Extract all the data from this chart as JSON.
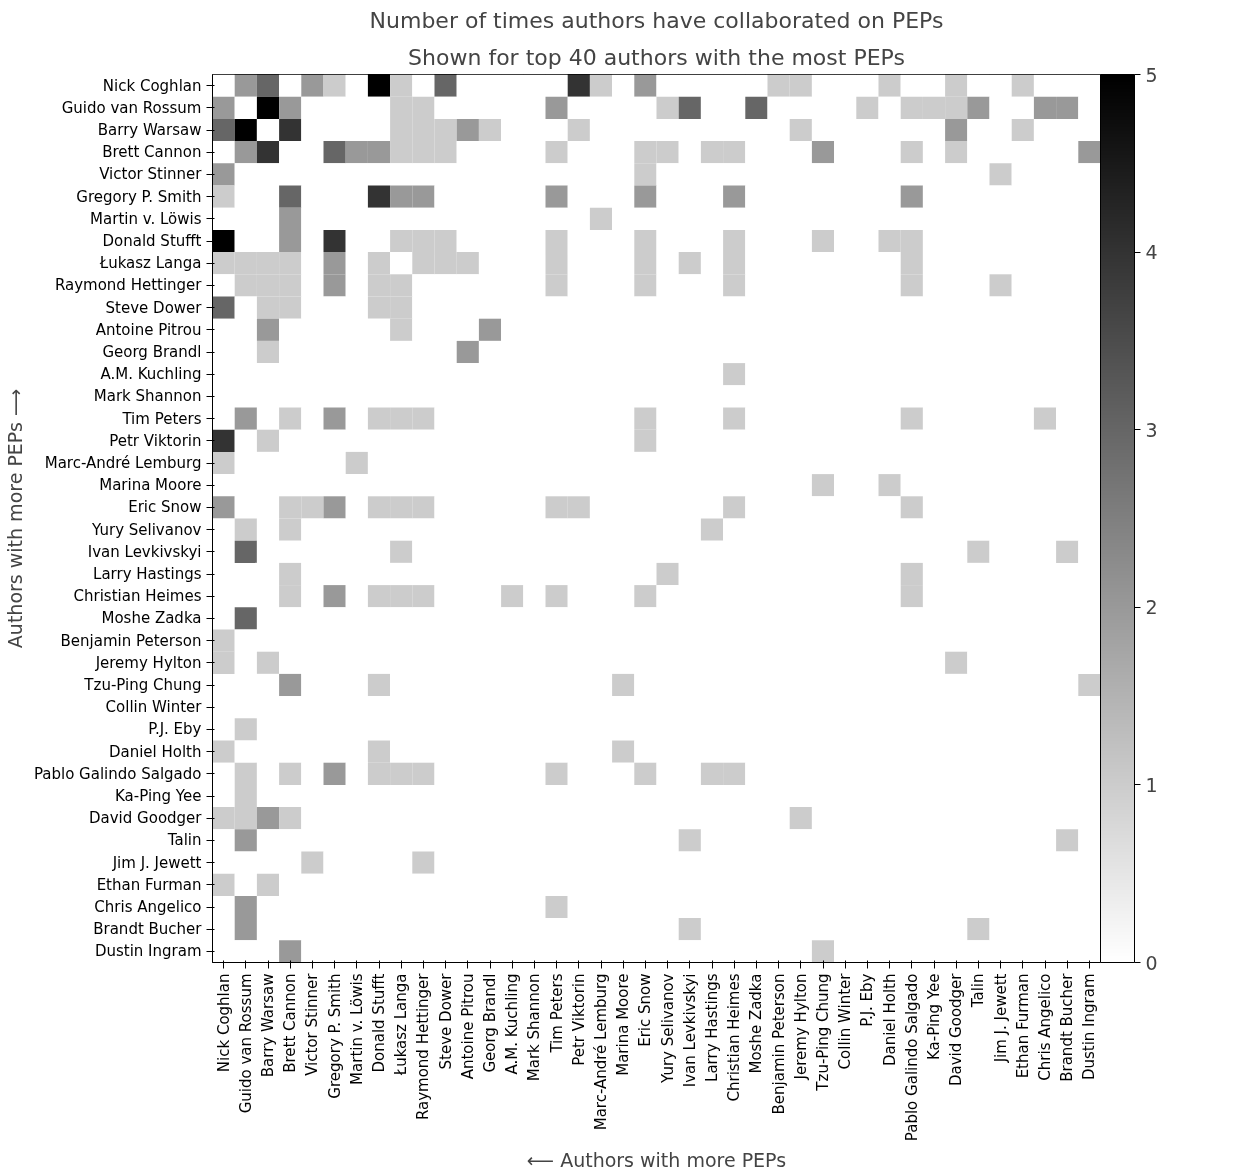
{
  "chart_data": {
    "type": "heatmap",
    "title": "Number of times authors have collaborated on PEPs",
    "subtitle": "Shown for top 40 authors with the most PEPs",
    "xlabel": "⟵ Authors with more PEPs",
    "ylabel": "Authors with more PEPs ⟶",
    "categories": [
      "Nick Coghlan",
      "Guido van Rossum",
      "Barry Warsaw",
      "Brett Cannon",
      "Victor Stinner",
      "Gregory P. Smith",
      "Martin v. Löwis",
      "Donald Stufft",
      "Łukasz Langa",
      "Raymond Hettinger",
      "Steve Dower",
      "Antoine Pitrou",
      "Georg Brandl",
      "A.M. Kuchling",
      "Mark Shannon",
      "Tim Peters",
      "Petr Viktorin",
      "Marc-André Lemburg",
      "Marina Moore",
      "Eric Snow",
      "Yury Selivanov",
      "Ivan Levkivskyi",
      "Larry Hastings",
      "Christian Heimes",
      "Moshe Zadka",
      "Benjamin Peterson",
      "Jeremy Hylton",
      "Tzu-Ping Chung",
      "Collin Winter",
      "P.J. Eby",
      "Daniel Holth",
      "Pablo Galindo Salgado",
      "Ka-Ping Yee",
      "David Goodger",
      "Talin",
      "Jim J. Jewett",
      "Ethan Furman",
      "Chris Angelico",
      "Brandt Bucher",
      "Dustin Ingram"
    ],
    "y_categories": [
      "Nick Coghlan",
      "Guido van Rossum",
      "Barry Warsaw",
      "Brett Cannon",
      "Victor Stinner",
      "Gregory P. Smith",
      "Martin v. Löwis",
      "Donald Stufft",
      "Łukasz Langa",
      "Raymond Hettinger",
      "Steve Dower",
      "Antoine Pitrou",
      "Georg Brandl",
      "A.M. Kuchling",
      "Mark Shannon",
      "Tim Peters",
      "Petr Viktorin",
      "Marc-André Lemburg",
      "Marina Moore",
      "Eric Snow",
      "Yury Selivanov",
      "Ivan Levkivskyi",
      "Larry Hastings",
      "Christian Heimes",
      "Moshe Zadka",
      "Benjamin Peterson",
      "Jeremy Hylton",
      "Tzu-Ping Chung",
      "Collin Winter",
      "P.J. Eby",
      "Daniel Holth",
      "Pablo Galindo Salgado",
      "Ka-Ping Yee",
      "David Goodger",
      "Talin",
      "Jim J. Jewett",
      "Ethan Furman",
      "Chris Angelico",
      "Brandt Bucher",
      "Dustin Ingram"
    ],
    "cells": [
      [
        0,
        2,
        3,
        0,
        2,
        1,
        0,
        5,
        1,
        0,
        3,
        0,
        0,
        0,
        0,
        0,
        4,
        1,
        0,
        2,
        0,
        0,
        0,
        0,
        0,
        1,
        1,
        0,
        0,
        0,
        1,
        0,
        0,
        1,
        0,
        0,
        1,
        0,
        0,
        0
      ],
      [
        2,
        0,
        5,
        2,
        0,
        0,
        0,
        0,
        1,
        1,
        0,
        0,
        0,
        0,
        0,
        2,
        0,
        0,
        0,
        0,
        1,
        3,
        0,
        0,
        3,
        0,
        0,
        0,
        0,
        1,
        0,
        1,
        1,
        1,
        2,
        0,
        0,
        2,
        2,
        0
      ],
      [
        3,
        5,
        0,
        4,
        0,
        0,
        0,
        0,
        1,
        1,
        1,
        2,
        1,
        0,
        0,
        0,
        1,
        0,
        0,
        0,
        0,
        0,
        0,
        0,
        0,
        0,
        1,
        0,
        0,
        0,
        0,
        0,
        0,
        2,
        0,
        0,
        1,
        0,
        0,
        0
      ],
      [
        0,
        2,
        4,
        0,
        0,
        3,
        2,
        2,
        1,
        1,
        1,
        0,
        0,
        0,
        0,
        1,
        0,
        0,
        0,
        1,
        1,
        0,
        1,
        1,
        0,
        0,
        0,
        2,
        0,
        0,
        0,
        1,
        0,
        1,
        0,
        0,
        0,
        0,
        0,
        2
      ],
      [
        2,
        0,
        0,
        0,
        0,
        0,
        0,
        0,
        0,
        0,
        0,
        0,
        0,
        0,
        0,
        0,
        0,
        0,
        0,
        1,
        0,
        0,
        0,
        0,
        0,
        0,
        0,
        0,
        0,
        0,
        0,
        0,
        0,
        0,
        0,
        1,
        0,
        0,
        0,
        0
      ],
      [
        1,
        0,
        0,
        3,
        0,
        0,
        0,
        4,
        2,
        2,
        0,
        0,
        0,
        0,
        0,
        2,
        0,
        0,
        0,
        2,
        0,
        0,
        0,
        2,
        0,
        0,
        0,
        0,
        0,
        0,
        0,
        2,
        0,
        0,
        0,
        0,
        0,
        0,
        0,
        0
      ],
      [
        0,
        0,
        0,
        2,
        0,
        0,
        0,
        0,
        0,
        0,
        0,
        0,
        0,
        0,
        0,
        0,
        0,
        1,
        0,
        0,
        0,
        0,
        0,
        0,
        0,
        0,
        0,
        0,
        0,
        0,
        0,
        0,
        0,
        0,
        0,
        0,
        0,
        0,
        0,
        0
      ],
      [
        5,
        0,
        0,
        2,
        0,
        4,
        0,
        0,
        1,
        1,
        1,
        0,
        0,
        0,
        0,
        1,
        0,
        0,
        0,
        1,
        0,
        0,
        0,
        1,
        0,
        0,
        0,
        1,
        0,
        0,
        1,
        1,
        0,
        0,
        0,
        0,
        0,
        0,
        0,
        0
      ],
      [
        1,
        1,
        1,
        1,
        0,
        2,
        0,
        1,
        0,
        1,
        1,
        1,
        0,
        0,
        0,
        1,
        0,
        0,
        0,
        1,
        0,
        1,
        0,
        1,
        0,
        0,
        0,
        0,
        0,
        0,
        0,
        1,
        0,
        0,
        0,
        0,
        0,
        0,
        0,
        0
      ],
      [
        0,
        1,
        1,
        1,
        0,
        2,
        0,
        1,
        1,
        0,
        0,
        0,
        0,
        0,
        0,
        1,
        0,
        0,
        0,
        1,
        0,
        0,
        0,
        1,
        0,
        0,
        0,
        0,
        0,
        0,
        0,
        1,
        0,
        0,
        0,
        1,
        0,
        0,
        0,
        0
      ],
      [
        3,
        0,
        1,
        1,
        0,
        0,
        0,
        1,
        1,
        0,
        0,
        0,
        0,
        0,
        0,
        0,
        0,
        0,
        0,
        0,
        0,
        0,
        0,
        0,
        0,
        0,
        0,
        0,
        0,
        0,
        0,
        0,
        0,
        0,
        0,
        0,
        0,
        0,
        0,
        0
      ],
      [
        0,
        0,
        2,
        0,
        0,
        0,
        0,
        0,
        1,
        0,
        0,
        0,
        2,
        0,
        0,
        0,
        0,
        0,
        0,
        0,
        0,
        0,
        0,
        0,
        0,
        0,
        0,
        0,
        0,
        0,
        0,
        0,
        0,
        0,
        0,
        0,
        0,
        0,
        0,
        0
      ],
      [
        0,
        0,
        1,
        0,
        0,
        0,
        0,
        0,
        0,
        0,
        0,
        2,
        0,
        0,
        0,
        0,
        0,
        0,
        0,
        0,
        0,
        0,
        0,
        0,
        0,
        0,
        0,
        0,
        0,
        0,
        0,
        0,
        0,
        0,
        0,
        0,
        0,
        0,
        0,
        0
      ],
      [
        0,
        0,
        0,
        0,
        0,
        0,
        0,
        0,
        0,
        0,
        0,
        0,
        0,
        0,
        0,
        0,
        0,
        0,
        0,
        0,
        0,
        0,
        0,
        1,
        0,
        0,
        0,
        0,
        0,
        0,
        0,
        0,
        0,
        0,
        0,
        0,
        0,
        0,
        0,
        0
      ],
      [
        0,
        0,
        0,
        0,
        0,
        0,
        0,
        0,
        0,
        0,
        0,
        0,
        0,
        0,
        0,
        0,
        0,
        0,
        0,
        0,
        0,
        0,
        0,
        0,
        0,
        0,
        0,
        0,
        0,
        0,
        0,
        0,
        0,
        0,
        0,
        0,
        0,
        0,
        0,
        0
      ],
      [
        0,
        2,
        0,
        1,
        0,
        2,
        0,
        1,
        1,
        1,
        0,
        0,
        0,
        0,
        0,
        0,
        0,
        0,
        0,
        1,
        0,
        0,
        0,
        1,
        0,
        0,
        0,
        0,
        0,
        0,
        0,
        1,
        0,
        0,
        0,
        0,
        0,
        1,
        0,
        0
      ],
      [
        4,
        0,
        1,
        0,
        0,
        0,
        0,
        0,
        0,
        0,
        0,
        0,
        0,
        0,
        0,
        0,
        0,
        0,
        0,
        1,
        0,
        0,
        0,
        0,
        0,
        0,
        0,
        0,
        0,
        0,
        0,
        0,
        0,
        0,
        0,
        0,
        0,
        0,
        0,
        0
      ],
      [
        1,
        0,
        0,
        0,
        0,
        0,
        1,
        0,
        0,
        0,
        0,
        0,
        0,
        0,
        0,
        0,
        0,
        0,
        0,
        0,
        0,
        0,
        0,
        0,
        0,
        0,
        0,
        0,
        0,
        0,
        0,
        0,
        0,
        0,
        0,
        0,
        0,
        0,
        0,
        0
      ],
      [
        0,
        0,
        0,
        0,
        0,
        0,
        0,
        0,
        0,
        0,
        0,
        0,
        0,
        0,
        0,
        0,
        0,
        0,
        0,
        0,
        0,
        0,
        0,
        0,
        0,
        0,
        0,
        1,
        0,
        0,
        1,
        0,
        0,
        0,
        0,
        0,
        0,
        0,
        0,
        0
      ],
      [
        2,
        0,
        0,
        1,
        1,
        2,
        0,
        1,
        1,
        1,
        0,
        0,
        0,
        0,
        0,
        1,
        1,
        0,
        0,
        0,
        0,
        0,
        0,
        1,
        0,
        0,
        0,
        0,
        0,
        0,
        0,
        1,
        0,
        0,
        0,
        0,
        0,
        0,
        0,
        0
      ],
      [
        0,
        1,
        0,
        1,
        0,
        0,
        0,
        0,
        0,
        0,
        0,
        0,
        0,
        0,
        0,
        0,
        0,
        0,
        0,
        0,
        0,
        0,
        1,
        0,
        0,
        0,
        0,
        0,
        0,
        0,
        0,
        0,
        0,
        0,
        0,
        0,
        0,
        0,
        0,
        0
      ],
      [
        0,
        3,
        0,
        0,
        0,
        0,
        0,
        0,
        1,
        0,
        0,
        0,
        0,
        0,
        0,
        0,
        0,
        0,
        0,
        0,
        0,
        0,
        0,
        0,
        0,
        0,
        0,
        0,
        0,
        0,
        0,
        0,
        0,
        0,
        1,
        0,
        0,
        0,
        1,
        0
      ],
      [
        0,
        0,
        0,
        1,
        0,
        0,
        0,
        0,
        0,
        0,
        0,
        0,
        0,
        0,
        0,
        0,
        0,
        0,
        0,
        0,
        1,
        0,
        0,
        0,
        0,
        0,
        0,
        0,
        0,
        0,
        0,
        1,
        0,
        0,
        0,
        0,
        0,
        0,
        0,
        0
      ],
      [
        0,
        0,
        0,
        1,
        0,
        2,
        0,
        1,
        1,
        1,
        0,
        0,
        0,
        1,
        0,
        1,
        0,
        0,
        0,
        1,
        0,
        0,
        0,
        0,
        0,
        0,
        0,
        0,
        0,
        0,
        0,
        1,
        0,
        0,
        0,
        0,
        0,
        0,
        0,
        0
      ],
      [
        0,
        3,
        0,
        0,
        0,
        0,
        0,
        0,
        0,
        0,
        0,
        0,
        0,
        0,
        0,
        0,
        0,
        0,
        0,
        0,
        0,
        0,
        0,
        0,
        0,
        0,
        0,
        0,
        0,
        0,
        0,
        0,
        0,
        0,
        0,
        0,
        0,
        0,
        0,
        0
      ],
      [
        1,
        0,
        0,
        0,
        0,
        0,
        0,
        0,
        0,
        0,
        0,
        0,
        0,
        0,
        0,
        0,
        0,
        0,
        0,
        0,
        0,
        0,
        0,
        0,
        0,
        0,
        0,
        0,
        0,
        0,
        0,
        0,
        0,
        0,
        0,
        0,
        0,
        0,
        0,
        0
      ],
      [
        1,
        0,
        1,
        0,
        0,
        0,
        0,
        0,
        0,
        0,
        0,
        0,
        0,
        0,
        0,
        0,
        0,
        0,
        0,
        0,
        0,
        0,
        0,
        0,
        0,
        0,
        0,
        0,
        0,
        0,
        0,
        0,
        0,
        1,
        0,
        0,
        0,
        0,
        0,
        0
      ],
      [
        0,
        0,
        0,
        2,
        0,
        0,
        0,
        1,
        0,
        0,
        0,
        0,
        0,
        0,
        0,
        0,
        0,
        0,
        1,
        0,
        0,
        0,
        0,
        0,
        0,
        0,
        0,
        0,
        0,
        0,
        0,
        0,
        0,
        0,
        0,
        0,
        0,
        0,
        0,
        1
      ],
      [
        0,
        0,
        0,
        0,
        0,
        0,
        0,
        0,
        0,
        0,
        0,
        0,
        0,
        0,
        0,
        0,
        0,
        0,
        0,
        0,
        0,
        0,
        0,
        0,
        0,
        0,
        0,
        0,
        0,
        0,
        0,
        0,
        0,
        0,
        0,
        0,
        0,
        0,
        0,
        0
      ],
      [
        0,
        1,
        0,
        0,
        0,
        0,
        0,
        0,
        0,
        0,
        0,
        0,
        0,
        0,
        0,
        0,
        0,
        0,
        0,
        0,
        0,
        0,
        0,
        0,
        0,
        0,
        0,
        0,
        0,
        0,
        0,
        0,
        0,
        0,
        0,
        0,
        0,
        0,
        0,
        0
      ],
      [
        1,
        0,
        0,
        0,
        0,
        0,
        0,
        1,
        0,
        0,
        0,
        0,
        0,
        0,
        0,
        0,
        0,
        0,
        1,
        0,
        0,
        0,
        0,
        0,
        0,
        0,
        0,
        0,
        0,
        0,
        0,
        0,
        0,
        0,
        0,
        0,
        0,
        0,
        0,
        0
      ],
      [
        0,
        1,
        0,
        1,
        0,
        2,
        0,
        1,
        1,
        1,
        0,
        0,
        0,
        0,
        0,
        1,
        0,
        0,
        0,
        1,
        0,
        0,
        1,
        1,
        0,
        0,
        0,
        0,
        0,
        0,
        0,
        0,
        0,
        0,
        0,
        0,
        0,
        0,
        0,
        0
      ],
      [
        0,
        1,
        0,
        0,
        0,
        0,
        0,
        0,
        0,
        0,
        0,
        0,
        0,
        0,
        0,
        0,
        0,
        0,
        0,
        0,
        0,
        0,
        0,
        0,
        0,
        0,
        0,
        0,
        0,
        0,
        0,
        0,
        0,
        0,
        0,
        0,
        0,
        0,
        0,
        0
      ],
      [
        1,
        1,
        2,
        1,
        0,
        0,
        0,
        0,
        0,
        0,
        0,
        0,
        0,
        0,
        0,
        0,
        0,
        0,
        0,
        0,
        0,
        0,
        0,
        0,
        0,
        0,
        1,
        0,
        0,
        0,
        0,
        0,
        0,
        0,
        0,
        0,
        0,
        0,
        0,
        0
      ],
      [
        0,
        2,
        0,
        0,
        0,
        0,
        0,
        0,
        0,
        0,
        0,
        0,
        0,
        0,
        0,
        0,
        0,
        0,
        0,
        0,
        0,
        1,
        0,
        0,
        0,
        0,
        0,
        0,
        0,
        0,
        0,
        0,
        0,
        0,
        0,
        0,
        0,
        0,
        1,
        0
      ],
      [
        0,
        0,
        0,
        0,
        1,
        0,
        0,
        0,
        0,
        1,
        0,
        0,
        0,
        0,
        0,
        0,
        0,
        0,
        0,
        0,
        0,
        0,
        0,
        0,
        0,
        0,
        0,
        0,
        0,
        0,
        0,
        0,
        0,
        0,
        0,
        0,
        0,
        0,
        0,
        0
      ],
      [
        1,
        0,
        1,
        0,
        0,
        0,
        0,
        0,
        0,
        0,
        0,
        0,
        0,
        0,
        0,
        0,
        0,
        0,
        0,
        0,
        0,
        0,
        0,
        0,
        0,
        0,
        0,
        0,
        0,
        0,
        0,
        0,
        0,
        0,
        0,
        0,
        0,
        0,
        0,
        0
      ],
      [
        0,
        2,
        0,
        0,
        0,
        0,
        0,
        0,
        0,
        0,
        0,
        0,
        0,
        0,
        0,
        1,
        0,
        0,
        0,
        0,
        0,
        0,
        0,
        0,
        0,
        0,
        0,
        0,
        0,
        0,
        0,
        0,
        0,
        0,
        0,
        0,
        0,
        0,
        0,
        0
      ],
      [
        0,
        2,
        0,
        0,
        0,
        0,
        0,
        0,
        0,
        0,
        0,
        0,
        0,
        0,
        0,
        0,
        0,
        0,
        0,
        0,
        0,
        1,
        0,
        0,
        0,
        0,
        0,
        0,
        0,
        0,
        0,
        0,
        0,
        0,
        1,
        0,
        0,
        0,
        0,
        0
      ],
      [
        0,
        0,
        0,
        2,
        0,
        0,
        0,
        0,
        0,
        0,
        0,
        0,
        0,
        0,
        0,
        0,
        0,
        0,
        0,
        0,
        0,
        0,
        0,
        0,
        0,
        0,
        0,
        1,
        0,
        0,
        0,
        0,
        0,
        0,
        0,
        0,
        0,
        0,
        0,
        0
      ]
    ],
    "clim": [
      0,
      5
    ],
    "cticks": [
      0,
      1,
      2,
      3,
      4,
      5
    ]
  }
}
